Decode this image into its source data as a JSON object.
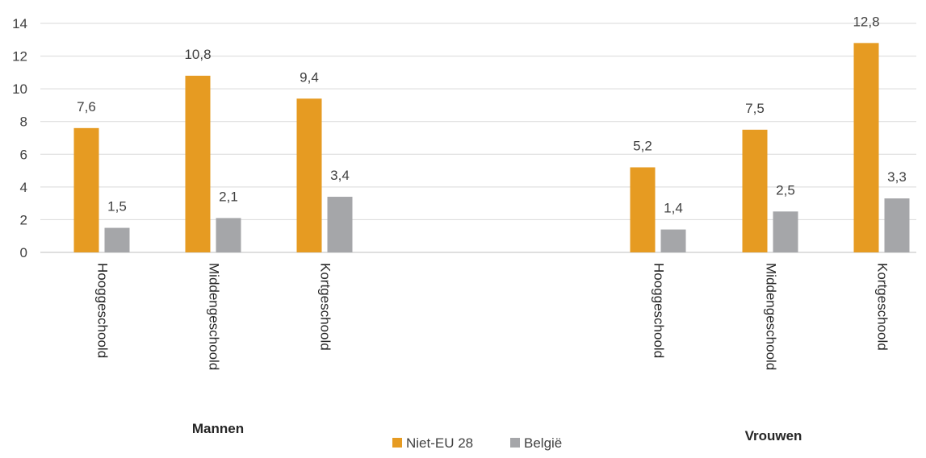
{
  "chart_data": {
    "type": "bar",
    "title": "",
    "xlabel": "",
    "ylabel": "",
    "ylim": [
      0,
      14
    ],
    "yticks": [
      0,
      2,
      4,
      6,
      8,
      10,
      12,
      14
    ],
    "grid": true,
    "legend_position": "bottom",
    "groups": [
      {
        "name": "Mannen",
        "categories": [
          "Hooggeschoold",
          "Middengeschoold",
          "Kortgeschoold"
        ]
      },
      {
        "name": "Vrouwen",
        "categories": [
          "Hooggeschoold",
          "Middengeschoold",
          "Kortgeschoold"
        ]
      }
    ],
    "series": [
      {
        "name": "Niet-EU 28",
        "color": "#E69B22",
        "values": [
          7.6,
          10.8,
          9.4,
          5.2,
          7.5,
          12.8
        ],
        "labels": [
          "7,6",
          "10,8",
          "9,4",
          "5,2",
          "7,5",
          "12,8"
        ]
      },
      {
        "name": "België",
        "color": "#A5A6A9",
        "values": [
          1.5,
          2.1,
          3.4,
          1.4,
          2.5,
          3.3
        ],
        "labels": [
          "1,5",
          "2,1",
          "3,4",
          "1,4",
          "2,5",
          "3,3"
        ]
      }
    ]
  }
}
